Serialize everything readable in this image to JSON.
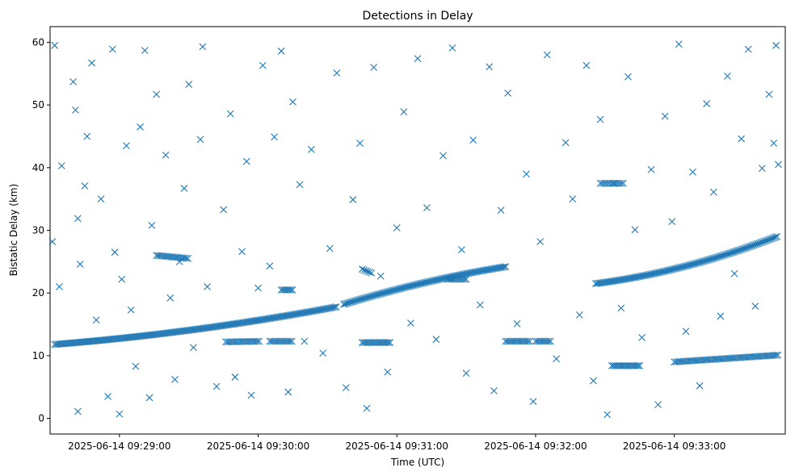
{
  "chart_data": {
    "type": "scatter",
    "title": "Detections in Delay",
    "xlabel": "Time (UTC)",
    "ylabel": "Bistatic Delay (km)",
    "marker": "x",
    "color": "#1f77b4",
    "grid": false,
    "x_ticks": [
      "2025-06-14 09:29:00",
      "2025-06-14 09:30:00",
      "2025-06-14 09:31:00",
      "2025-06-14 09:32:00",
      "2025-06-14 09:33:00"
    ],
    "y_ticks": [
      0,
      10,
      20,
      30,
      40,
      50,
      60
    ],
    "xlim": [
      "2025-06-14 09:28:30",
      "2025-06-14 09:33:48"
    ],
    "ylim": [
      -2.5,
      62.5
    ],
    "series": [
      {
        "points": [
          [
            "09:28:31",
            28.2
          ],
          [
            "09:28:32",
            59.5
          ],
          [
            "09:28:34",
            21.0
          ],
          [
            "09:28:35",
            40.3
          ],
          [
            "09:28:40",
            53.7
          ],
          [
            "09:28:41",
            49.2
          ],
          [
            "09:28:42",
            1.1
          ],
          [
            "09:28:42",
            31.9
          ],
          [
            "09:28:43",
            24.6
          ],
          [
            "09:28:45",
            37.1
          ],
          [
            "09:28:46",
            45.0
          ],
          [
            "09:28:48",
            56.7
          ],
          [
            "09:28:50",
            15.7
          ],
          [
            "09:28:52",
            35.0
          ],
          [
            "09:28:55",
            3.5
          ],
          [
            "09:28:57",
            58.9
          ],
          [
            "09:28:58",
            26.5
          ],
          [
            "09:29:00",
            0.7
          ],
          [
            "09:29:01",
            22.2
          ],
          [
            "09:29:03",
            43.5
          ],
          [
            "09:29:05",
            17.3
          ],
          [
            "09:29:07",
            8.3
          ],
          [
            "09:29:09",
            46.5
          ],
          [
            "09:29:11",
            58.7
          ],
          [
            "09:29:13",
            3.3
          ],
          [
            "09:29:14",
            30.8
          ],
          [
            "09:29:16",
            51.7
          ],
          [
            "09:29:20",
            42.0
          ],
          [
            "09:29:22",
            19.2
          ],
          [
            "09:29:24",
            6.2
          ],
          [
            "09:29:26",
            25.0
          ],
          [
            "09:29:28",
            36.7
          ],
          [
            "09:29:30",
            53.3
          ],
          [
            "09:29:32",
            11.3
          ],
          [
            "09:29:35",
            44.5
          ],
          [
            "09:29:36",
            59.3
          ],
          [
            "09:29:38",
            21.0
          ],
          [
            "09:29:42",
            5.1
          ],
          [
            "09:29:45",
            33.3
          ],
          [
            "09:29:48",
            48.6
          ],
          [
            "09:29:50",
            6.6
          ],
          [
            "09:29:53",
            26.6
          ],
          [
            "09:29:55",
            41.0
          ],
          [
            "09:29:57",
            3.7
          ],
          [
            "09:30:00",
            20.8
          ],
          [
            "09:30:02",
            56.3
          ],
          [
            "09:30:05",
            24.3
          ],
          [
            "09:30:07",
            44.9
          ],
          [
            "09:30:10",
            58.6
          ],
          [
            "09:30:13",
            4.2
          ],
          [
            "09:30:15",
            50.5
          ],
          [
            "09:30:18",
            37.3
          ],
          [
            "09:30:20",
            12.3
          ],
          [
            "09:30:23",
            42.9
          ],
          [
            "09:30:28",
            10.4
          ],
          [
            "09:30:31",
            27.1
          ],
          [
            "09:30:34",
            55.1
          ],
          [
            "09:30:38",
            4.9
          ],
          [
            "09:30:41",
            34.9
          ],
          [
            "09:30:44",
            43.9
          ],
          [
            "09:30:47",
            1.6
          ],
          [
            "09:30:50",
            56.0
          ],
          [
            "09:30:53",
            22.7
          ],
          [
            "09:30:56",
            7.4
          ],
          [
            "09:31:00",
            30.4
          ],
          [
            "09:31:03",
            48.9
          ],
          [
            "09:31:06",
            15.2
          ],
          [
            "09:31:09",
            57.4
          ],
          [
            "09:31:13",
            33.6
          ],
          [
            "09:31:17",
            12.6
          ],
          [
            "09:31:20",
            41.9
          ],
          [
            "09:31:24",
            59.1
          ],
          [
            "09:31:28",
            26.9
          ],
          [
            "09:31:30",
            7.2
          ],
          [
            "09:31:33",
            44.4
          ],
          [
            "09:31:36",
            18.1
          ],
          [
            "09:31:40",
            56.1
          ],
          [
            "09:31:42",
            4.4
          ],
          [
            "09:31:45",
            33.2
          ],
          [
            "09:31:48",
            51.9
          ],
          [
            "09:31:52",
            15.1
          ],
          [
            "09:31:56",
            39.0
          ],
          [
            "09:31:59",
            2.7
          ],
          [
            "09:32:02",
            28.2
          ],
          [
            "09:32:05",
            58.0
          ],
          [
            "09:32:09",
            9.5
          ],
          [
            "09:32:13",
            44.0
          ],
          [
            "09:32:16",
            35.0
          ],
          [
            "09:32:19",
            16.5
          ],
          [
            "09:32:22",
            56.3
          ],
          [
            "09:32:25",
            6.0
          ],
          [
            "09:32:28",
            47.7
          ],
          [
            "09:32:31",
            0.6
          ],
          [
            "09:32:34",
            37.5
          ],
          [
            "09:32:37",
            17.6
          ],
          [
            "09:32:40",
            54.5
          ],
          [
            "09:32:43",
            30.1
          ],
          [
            "09:32:46",
            12.9
          ],
          [
            "09:32:50",
            39.7
          ],
          [
            "09:32:53",
            2.2
          ],
          [
            "09:32:56",
            48.2
          ],
          [
            "09:32:59",
            31.4
          ],
          [
            "09:33:02",
            59.7
          ],
          [
            "09:33:05",
            13.9
          ],
          [
            "09:33:08",
            39.3
          ],
          [
            "09:33:11",
            5.2
          ],
          [
            "09:33:14",
            50.2
          ],
          [
            "09:33:17",
            36.1
          ],
          [
            "09:33:20",
            16.3
          ],
          [
            "09:33:23",
            54.6
          ],
          [
            "09:33:26",
            23.1
          ],
          [
            "09:33:29",
            44.6
          ],
          [
            "09:33:32",
            58.9
          ],
          [
            "09:33:35",
            17.9
          ],
          [
            "09:33:38",
            39.9
          ],
          [
            "09:33:41",
            51.7
          ],
          [
            "09:33:43",
            43.9
          ],
          [
            "09:33:44",
            59.5
          ],
          [
            "09:33:45",
            40.5
          ]
        ]
      }
    ],
    "tracks": [
      {
        "label": "",
        "t0": "09:28:32",
        "t1": "09:30:34",
        "y0": 11.8,
        "y1": 17.8,
        "curve": 0.4,
        "step_s": 0.7
      },
      {
        "label": "",
        "t0": "09:30:37",
        "t1": "09:31:47",
        "y0": 18.2,
        "y1": 24.2,
        "curve": -0.3,
        "step_s": 0.7
      },
      {
        "label": "",
        "t0": "09:32:26",
        "t1": "09:33:45",
        "y0": 21.5,
        "y1": 29.1,
        "curve": 0.5,
        "step_s": 0.7
      },
      {
        "label": "",
        "t0": "09:33:00",
        "t1": "09:33:45",
        "y0": 9.0,
        "y1": 10.1,
        "curve": 0.0,
        "step_s": 0.8
      },
      {
        "label": "",
        "t0": "09:29:16",
        "t1": "09:29:30",
        "y0": 26.0,
        "y1": 25.5,
        "curve": 0.0,
        "step_s": 0.8
      },
      {
        "label": "",
        "t0": "09:29:46",
        "t1": "09:30:01",
        "y0": 12.2,
        "y1": 12.3,
        "curve": 0.0,
        "step_s": 0.8
      },
      {
        "label": "",
        "t0": "09:30:05",
        "t1": "09:30:15",
        "y0": 12.3,
        "y1": 12.3,
        "curve": 0.0,
        "step_s": 0.8
      },
      {
        "label": "",
        "t0": "09:30:10",
        "t1": "09:30:15",
        "y0": 20.5,
        "y1": 20.5,
        "curve": 0.0,
        "step_s": 0.8
      },
      {
        "label": "",
        "t0": "09:30:45",
        "t1": "09:30:57",
        "y0": 12.1,
        "y1": 12.1,
        "curve": 0.0,
        "step_s": 0.8
      },
      {
        "label": "",
        "t0": "09:30:45",
        "t1": "09:30:49",
        "y0": 23.8,
        "y1": 23.2,
        "curve": 0.0,
        "step_s": 0.8
      },
      {
        "label": "",
        "t0": "09:31:22",
        "t1": "09:31:30",
        "y0": 22.2,
        "y1": 22.2,
        "curve": 0.0,
        "step_s": 0.8
      },
      {
        "label": "",
        "t0": "09:31:47",
        "t1": "09:31:58",
        "y0": 12.3,
        "y1": 12.3,
        "curve": 0.0,
        "step_s": 0.8
      },
      {
        "label": "",
        "t0": "09:32:00",
        "t1": "09:32:07",
        "y0": 12.3,
        "y1": 12.3,
        "curve": 0.0,
        "step_s": 0.8
      },
      {
        "label": "",
        "t0": "09:32:33",
        "t1": "09:32:45",
        "y0": 8.4,
        "y1": 8.4,
        "curve": 0.0,
        "step_s": 0.8
      },
      {
        "label": "",
        "t0": "09:32:28",
        "t1": "09:32:38",
        "y0": 37.5,
        "y1": 37.5,
        "curve": 0.0,
        "step_s": 0.9
      }
    ]
  }
}
